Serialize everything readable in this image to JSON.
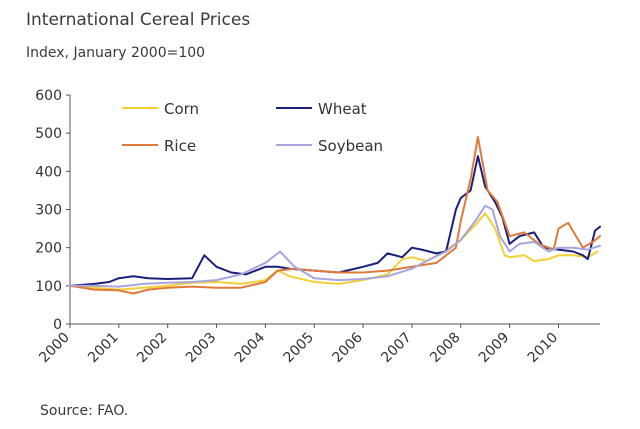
{
  "chart_data": {
    "type": "line",
    "title": "International Cereal Prices",
    "subtitle": "Index, January 2000=100",
    "source": "Source: FAO.",
    "xlabel": "",
    "ylabel": "",
    "xlim": [
      2000,
      2010.85
    ],
    "ylim": [
      0,
      600
    ],
    "yticks": [
      0,
      100,
      200,
      300,
      400,
      500,
      600
    ],
    "xticks": [
      2000,
      2001,
      2002,
      2003,
      2004,
      2005,
      2006,
      2007,
      2008,
      2009,
      2010
    ],
    "xticklabels": [
      "2000",
      "2001",
      "2002",
      "2003",
      "2004",
      "2005",
      "2006",
      "2007",
      "2008",
      "2009",
      "2010"
    ],
    "legend_position": "top",
    "series": [
      {
        "name": "Corn",
        "color": "#f2d036",
        "x": [
          2000,
          2000.5,
          2001,
          2001.5,
          2002,
          2002.5,
          2003,
          2003.5,
          2004,
          2004.25,
          2004.5,
          2005,
          2005.5,
          2006,
          2006.5,
          2006.8,
          2007,
          2007.3,
          2007.6,
          2008,
          2008.3,
          2008.5,
          2008.7,
          2008.9,
          2009,
          2009.3,
          2009.5,
          2009.8,
          2010,
          2010.3,
          2010.6,
          2010.8
        ],
        "values": [
          100,
          95,
          90,
          95,
          100,
          108,
          110,
          105,
          115,
          140,
          125,
          110,
          105,
          115,
          130,
          170,
          175,
          165,
          185,
          220,
          260,
          290,
          250,
          180,
          175,
          180,
          165,
          170,
          180,
          180,
          175,
          190
        ]
      },
      {
        "name": "Wheat",
        "color": "#1a1f7a",
        "x": [
          2000,
          2000.5,
          2000.8,
          2001,
          2001.3,
          2001.6,
          2002,
          2002.5,
          2002.75,
          2003,
          2003.3,
          2003.6,
          2004,
          2004.25,
          2004.5,
          2005,
          2005.5,
          2006,
          2006.3,
          2006.5,
          2006.8,
          2007,
          2007.2,
          2007.5,
          2007.7,
          2007.9,
          2008,
          2008.2,
          2008.35,
          2008.5,
          2008.7,
          2008.85,
          2009,
          2009.2,
          2009.5,
          2009.7,
          2010,
          2010.3,
          2010.5,
          2010.6,
          2010.75,
          2010.85
        ],
        "values": [
          100,
          105,
          110,
          120,
          125,
          120,
          118,
          120,
          180,
          150,
          135,
          130,
          150,
          150,
          145,
          140,
          135,
          150,
          160,
          185,
          175,
          200,
          195,
          185,
          190,
          300,
          330,
          350,
          440,
          360,
          320,
          280,
          210,
          230,
          240,
          200,
          195,
          190,
          180,
          170,
          245,
          255
        ]
      },
      {
        "name": "Rice",
        "color": "#e07a3c",
        "x": [
          2000,
          2000.5,
          2001,
          2001.3,
          2001.6,
          2002,
          2002.5,
          2003,
          2003.5,
          2004,
          2004.25,
          2004.6,
          2005,
          2005.5,
          2006,
          2006.5,
          2007,
          2007.5,
          2007.9,
          2008,
          2008.2,
          2008.35,
          2008.45,
          2008.55,
          2008.75,
          2009,
          2009.3,
          2009.6,
          2009.9,
          2010,
          2010.2,
          2010.5,
          2010.7,
          2010.85
        ],
        "values": [
          100,
          90,
          88,
          80,
          90,
          95,
          98,
          95,
          95,
          110,
          140,
          145,
          140,
          135,
          135,
          140,
          150,
          160,
          200,
          270,
          380,
          490,
          420,
          350,
          320,
          230,
          240,
          210,
          195,
          250,
          265,
          200,
          215,
          230
        ]
      },
      {
        "name": "Soybean",
        "color": "#a8a4dc",
        "x": [
          2000,
          2000.5,
          2001,
          2001.5,
          2002,
          2002.5,
          2003,
          2003.5,
          2004,
          2004.3,
          2004.6,
          2005,
          2005.5,
          2006,
          2006.5,
          2007,
          2007.3,
          2007.7,
          2008,
          2008.3,
          2008.5,
          2008.65,
          2008.8,
          2009,
          2009.2,
          2009.5,
          2009.8,
          2010,
          2010.3,
          2010.6,
          2010.85
        ],
        "values": [
          100,
          100,
          98,
          105,
          108,
          110,
          115,
          130,
          160,
          190,
          150,
          120,
          115,
          118,
          125,
          145,
          165,
          190,
          220,
          270,
          310,
          300,
          230,
          190,
          210,
          215,
          190,
          200,
          200,
          195,
          205
        ]
      }
    ]
  }
}
